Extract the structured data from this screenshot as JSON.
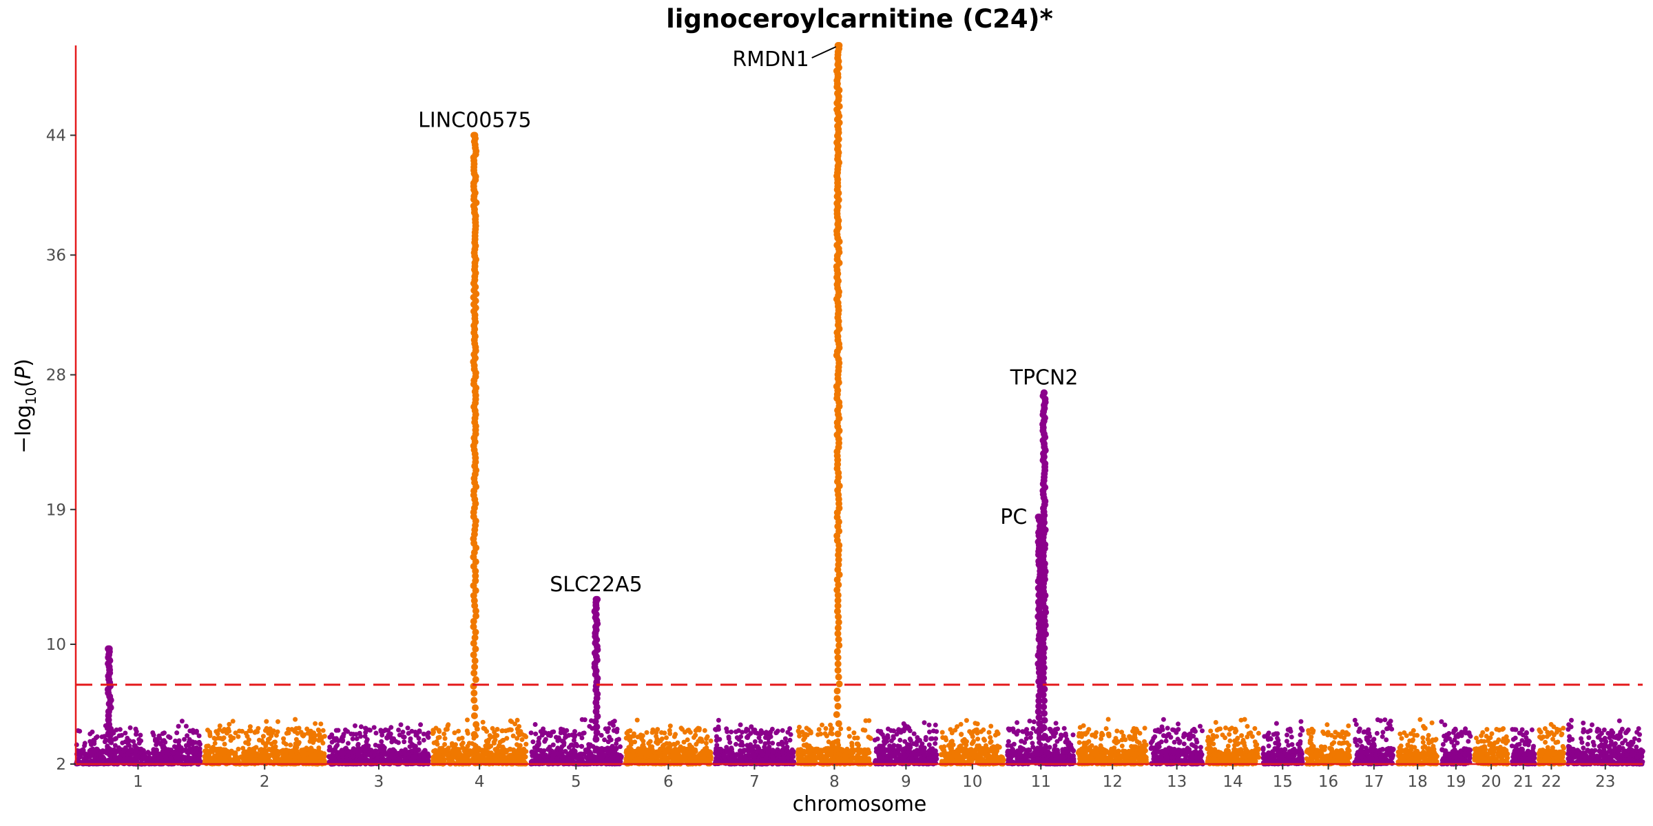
{
  "chart_data": {
    "type": "scatter",
    "subtype": "manhattan",
    "title": "lignoceroylcarnitine (C24)*",
    "xlabel": "chromosome",
    "ylabel": "−log10(P)",
    "ylim": [
      2,
      50
    ],
    "yticks": [
      2,
      10,
      19,
      28,
      36,
      44
    ],
    "threshold": 7.3,
    "threshold_color": "#e41a1c",
    "colors": {
      "odd": "#8b008b",
      "even": "#f07800",
      "axis": "#e41a1c"
    },
    "chromosomes": [
      {
        "label": "1",
        "size": 6.0
      },
      {
        "label": "2",
        "size": 5.8
      },
      {
        "label": "3",
        "size": 4.8
      },
      {
        "label": "4",
        "size": 4.5
      },
      {
        "label": "5",
        "size": 4.4
      },
      {
        "label": "6",
        "size": 4.1
      },
      {
        "label": "7",
        "size": 3.8
      },
      {
        "label": "8",
        "size": 3.5
      },
      {
        "label": "9",
        "size": 3.0
      },
      {
        "label": "10",
        "size": 3.0
      },
      {
        "label": "11",
        "size": 3.2
      },
      {
        "label": "12",
        "size": 3.3
      },
      {
        "label": "13",
        "size": 2.5
      },
      {
        "label": "14",
        "size": 2.5
      },
      {
        "label": "15",
        "size": 1.9
      },
      {
        "label": "16",
        "size": 2.1
      },
      {
        "label": "17",
        "size": 1.9
      },
      {
        "label": "18",
        "size": 1.9
      },
      {
        "label": "19",
        "size": 1.4
      },
      {
        "label": "20",
        "size": 1.6
      },
      {
        "label": "21",
        "size": 1.1
      },
      {
        "label": "22",
        "size": 1.2
      },
      {
        "label": "23",
        "size": 3.6
      }
    ],
    "peaks": [
      {
        "chr": "1",
        "pos": 0.27,
        "top": 9.7,
        "label": ""
      },
      {
        "chr": "4",
        "pos": 0.45,
        "top": 44.0,
        "label": "LINC00575"
      },
      {
        "chr": "5",
        "pos": 0.72,
        "top": 13.0,
        "label": "SLC22A5"
      },
      {
        "chr": "8",
        "pos": 0.55,
        "top": 50.0,
        "label": "RMDN1"
      },
      {
        "chr": "11",
        "pos": 0.55,
        "top": 26.8,
        "label": "TPCN2"
      },
      {
        "chr": "11",
        "pos": 0.48,
        "top": 18.5,
        "label": "PC"
      }
    ]
  }
}
